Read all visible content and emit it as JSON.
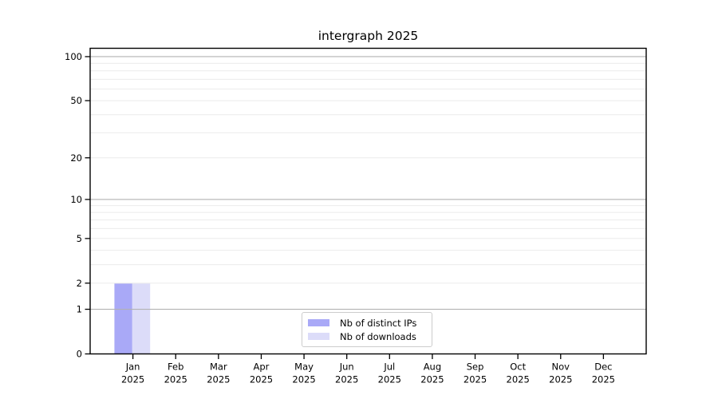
{
  "title": "intergraph 2025",
  "chart_data": {
    "type": "bar",
    "title": "intergraph 2025",
    "categories": [
      "Jan",
      "Feb",
      "Mar",
      "Apr",
      "May",
      "Jun",
      "Jul",
      "Aug",
      "Sep",
      "Oct",
      "Nov",
      "Dec"
    ],
    "year": "2025",
    "series": [
      {
        "name": "Nb of distinct IPs",
        "color": "#a9a9f7",
        "values": [
          2,
          0,
          0,
          0,
          0,
          0,
          0,
          0,
          0,
          0,
          0,
          0
        ]
      },
      {
        "name": "Nb of downloads",
        "color": "#dcdcf9",
        "values": [
          2,
          0,
          0,
          0,
          0,
          0,
          0,
          0,
          0,
          0,
          0,
          0
        ]
      }
    ],
    "xlabel": "",
    "ylabel": "",
    "y_scale": "log10(1+v)",
    "ylim": [
      0,
      114
    ],
    "y_ticks": [
      0,
      1,
      2,
      5,
      10,
      20,
      50,
      100
    ],
    "y_major_gridlines": [
      1,
      10,
      100
    ],
    "y_minor_gridlines": [
      2,
      3,
      4,
      5,
      6,
      7,
      8,
      9,
      20,
      30,
      40,
      50,
      60,
      70,
      80,
      90
    ],
    "grid": true,
    "legend_position": "lower center"
  },
  "colors": {
    "background": "#ffffff",
    "axis": "#000000",
    "text": "#000000",
    "major_grid": "#b2b2b2",
    "minor_grid": "#ebebeb",
    "legend_border": "#cccccc"
  }
}
